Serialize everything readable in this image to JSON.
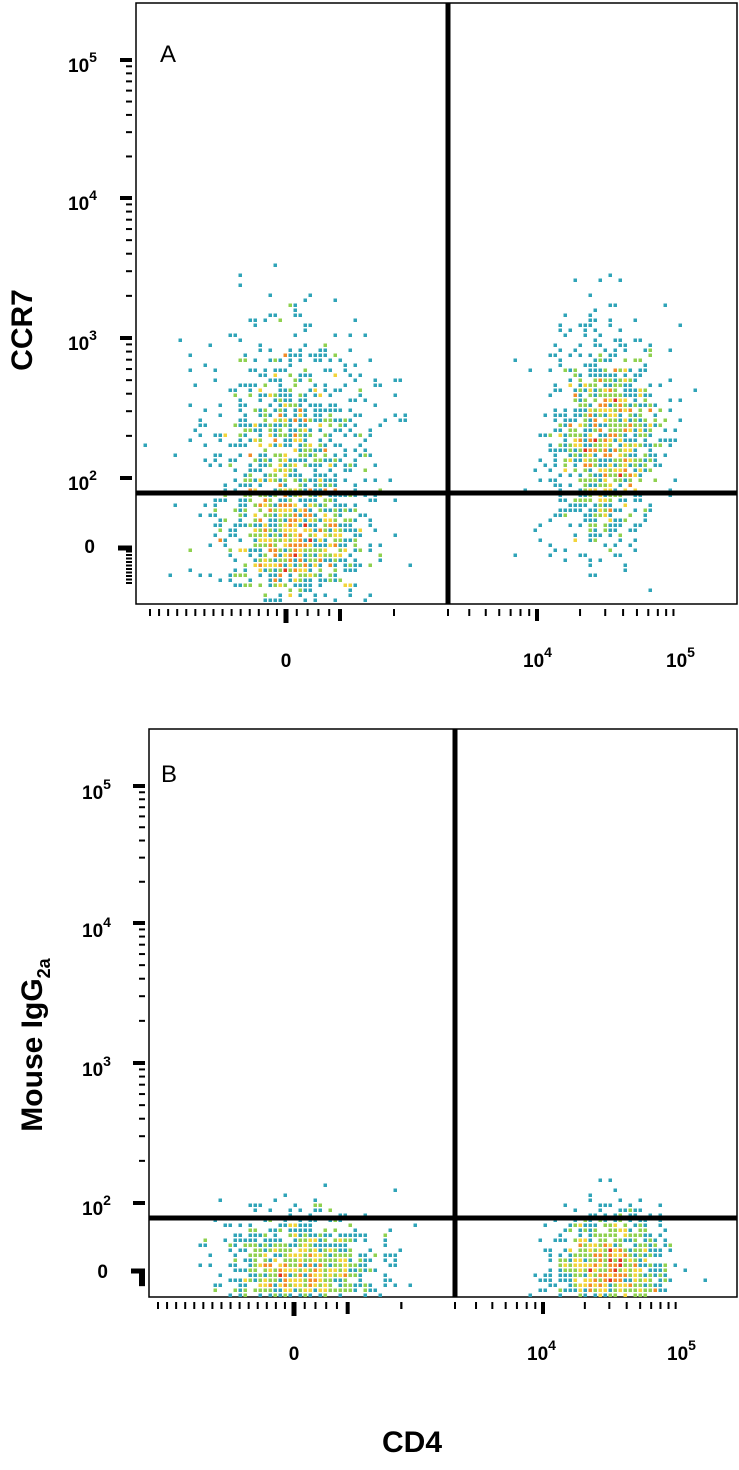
{
  "figure": {
    "x_axis_label": "CD4"
  },
  "chart_data": [
    {
      "type": "scatter",
      "panel_label": "A",
      "ylabel": "CCR7",
      "x_scale": "biexponential",
      "y_scale": "biexponential",
      "x_tick_labels": [
        {
          "base": "0",
          "exp": ""
        },
        {
          "base": "10",
          "exp": "4"
        },
        {
          "base": "10",
          "exp": "5"
        }
      ],
      "y_tick_labels": [
        {
          "base": "0",
          "exp": ""
        },
        {
          "base": "10",
          "exp": "2"
        },
        {
          "base": "10",
          "exp": "3"
        },
        {
          "base": "10",
          "exp": "4"
        },
        {
          "base": "10",
          "exp": "5"
        }
      ],
      "gate": {
        "x": 3000,
        "y": 80
      },
      "populations": [
        {
          "x": 150,
          "y": 10,
          "x_spread": 0.6,
          "y_spread": 0.5,
          "share": 0.3
        },
        {
          "x": 100,
          "y": 200,
          "x_spread": 0.65,
          "y_spread": 0.9,
          "share": 0.3
        },
        {
          "x": 30000,
          "y": 180,
          "x_spread": 0.45,
          "y_spread": 0.9,
          "share": 0.4
        }
      ],
      "color_scale": [
        "#1f4e9c",
        "#2fa4b8",
        "#8fd14f",
        "#f2d43a",
        "#f28c28",
        "#e0321f"
      ]
    },
    {
      "type": "scatter",
      "panel_label": "B",
      "ylabel": "Mouse IgG2a",
      "ylabel_main": "Mouse IgG",
      "ylabel_sub": "2a",
      "x_scale": "biexponential",
      "y_scale": "biexponential",
      "x_tick_labels": [
        {
          "base": "0",
          "exp": ""
        },
        {
          "base": "10",
          "exp": "4"
        },
        {
          "base": "10",
          "exp": "5"
        }
      ],
      "y_tick_labels": [
        {
          "base": "0",
          "exp": ""
        },
        {
          "base": "10",
          "exp": "2"
        },
        {
          "base": "10",
          "exp": "3"
        },
        {
          "base": "10",
          "exp": "4"
        },
        {
          "base": "10",
          "exp": "5"
        }
      ],
      "gate": {
        "x": 3000,
        "y": 80
      },
      "populations": [
        {
          "x": 150,
          "y": 0,
          "x_spread": 0.6,
          "y_spread": 0.45,
          "share": 0.5
        },
        {
          "x": 30000,
          "y": 0,
          "x_spread": 0.45,
          "y_spread": 0.45,
          "share": 0.5
        }
      ],
      "color_scale": [
        "#1f4e9c",
        "#2fa4b8",
        "#8fd14f",
        "#f2d43a",
        "#f28c28",
        "#e0321f"
      ]
    }
  ]
}
